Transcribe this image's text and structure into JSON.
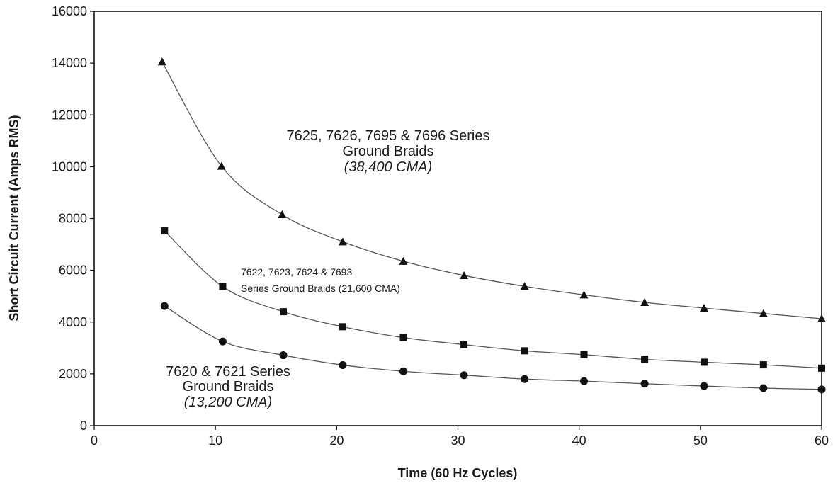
{
  "chart_data": {
    "type": "line",
    "title": "",
    "xlabel": "Time (60 Hz Cycles)",
    "ylabel": "Short Circuit Current (Amps RMS)",
    "xlim": [
      0,
      60
    ],
    "ylim": [
      0,
      16000
    ],
    "xticks": [
      0,
      10,
      20,
      30,
      40,
      50,
      60
    ],
    "yticks": [
      0,
      2000,
      4000,
      6000,
      8000,
      10000,
      12000,
      14000,
      16000
    ],
    "grid": false,
    "legend": "none",
    "series": [
      {
        "marker": "triangle",
        "x": [
          5.6,
          10.5,
          15.5,
          20.5,
          25.5,
          30.5,
          35.5,
          40.4,
          45.4,
          50.3,
          55.2,
          60
        ],
        "y": [
          14050,
          10020,
          8150,
          7100,
          6350,
          5800,
          5380,
          5050,
          4760,
          4540,
          4330,
          4130
        ]
      },
      {
        "marker": "square",
        "x": [
          5.8,
          10.6,
          15.6,
          20.5,
          25.5,
          30.5,
          35.5,
          40.4,
          45.4,
          50.3,
          55.2,
          60
        ],
        "y": [
          7520,
          5370,
          4400,
          3820,
          3400,
          3130,
          2890,
          2740,
          2560,
          2450,
          2350,
          2220
        ]
      },
      {
        "marker": "circle",
        "x": [
          5.8,
          10.6,
          15.6,
          20.5,
          25.5,
          30.5,
          35.5,
          40.4,
          45.4,
          50.3,
          55.2,
          60
        ],
        "y": [
          4620,
          3250,
          2720,
          2340,
          2100,
          1950,
          1800,
          1720,
          1620,
          1530,
          1450,
          1400
        ]
      }
    ],
    "annotations": {
      "upper": {
        "line1": "7625, 7626, 7695 & 7696 Series",
        "line2": "Ground Braids",
        "line3": "(38,400 CMA)"
      },
      "middle": {
        "line1": "7622, 7623, 7624 & 7693",
        "line2": "Series Ground Braids (21,600 CMA)"
      },
      "lower": {
        "line1": "7620 & 7621 Series",
        "line2": "Ground Braids",
        "line3": "(13,200 CMA)"
      }
    }
  }
}
